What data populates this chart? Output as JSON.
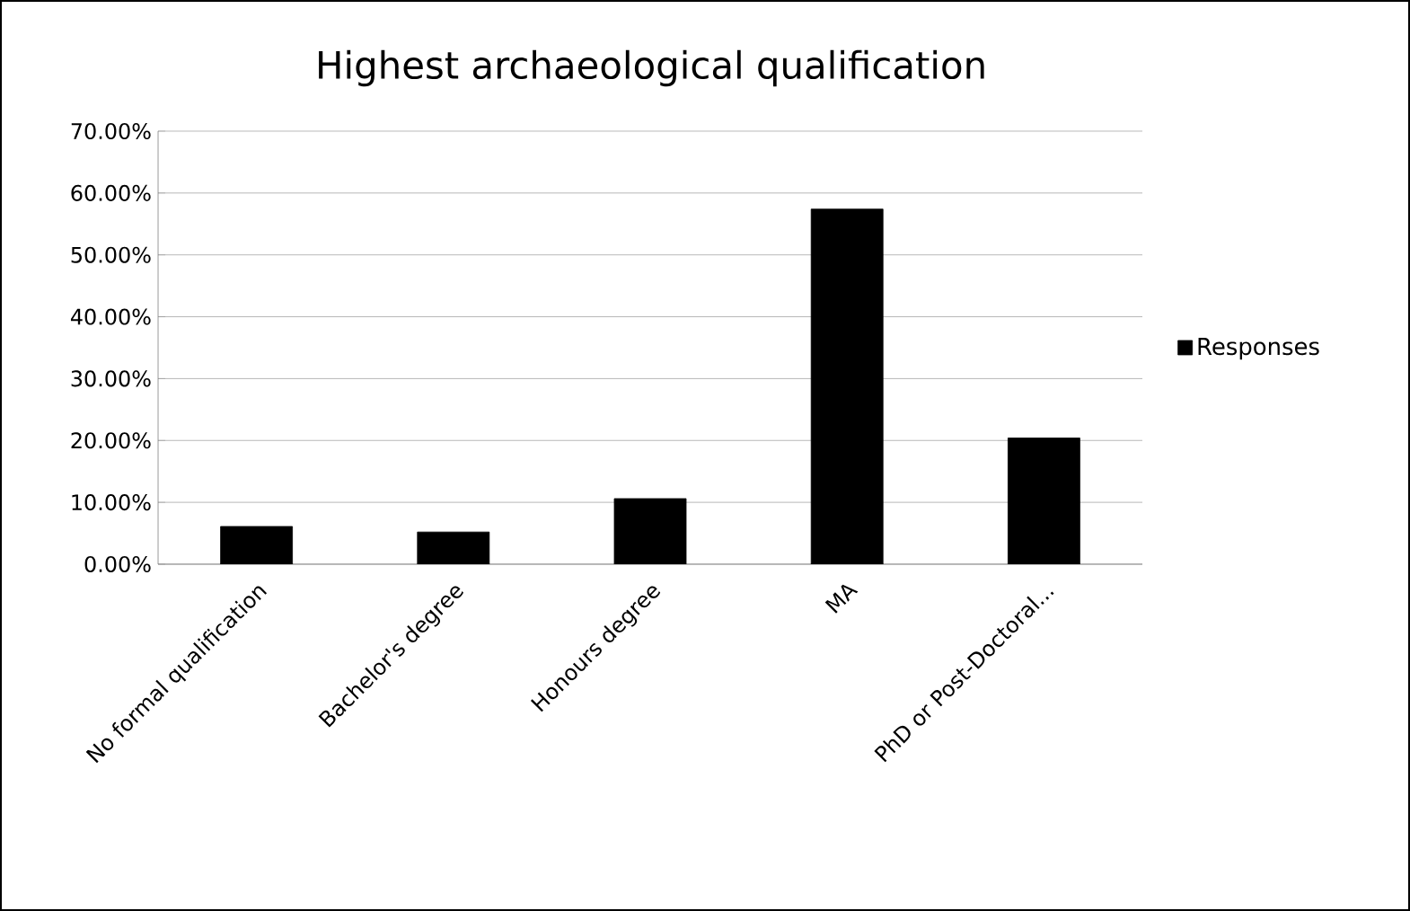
{
  "chart_data": {
    "type": "bar",
    "title": "Highest archaeological qualification",
    "categories": [
      "No formal qualification",
      "Bachelor's degree",
      "Honours degree",
      "MA",
      "PhD or Post-Doctoral..."
    ],
    "series": [
      {
        "name": "Responses",
        "color": "#000000",
        "values": [
          6.1,
          5.2,
          10.6,
          57.4,
          20.4
        ]
      }
    ],
    "ylim": [
      0,
      70
    ],
    "yticks": [
      {
        "value": 0,
        "label": "0.00%"
      },
      {
        "value": 10,
        "label": "10.00%"
      },
      {
        "value": 20,
        "label": "20.00%"
      },
      {
        "value": 30,
        "label": "30.00%"
      },
      {
        "value": 40,
        "label": "40.00%"
      },
      {
        "value": 50,
        "label": "50.00%"
      },
      {
        "value": 60,
        "label": "60.00%"
      },
      {
        "value": 70,
        "label": "70.00%"
      }
    ],
    "grid": "y",
    "legend": "right"
  }
}
